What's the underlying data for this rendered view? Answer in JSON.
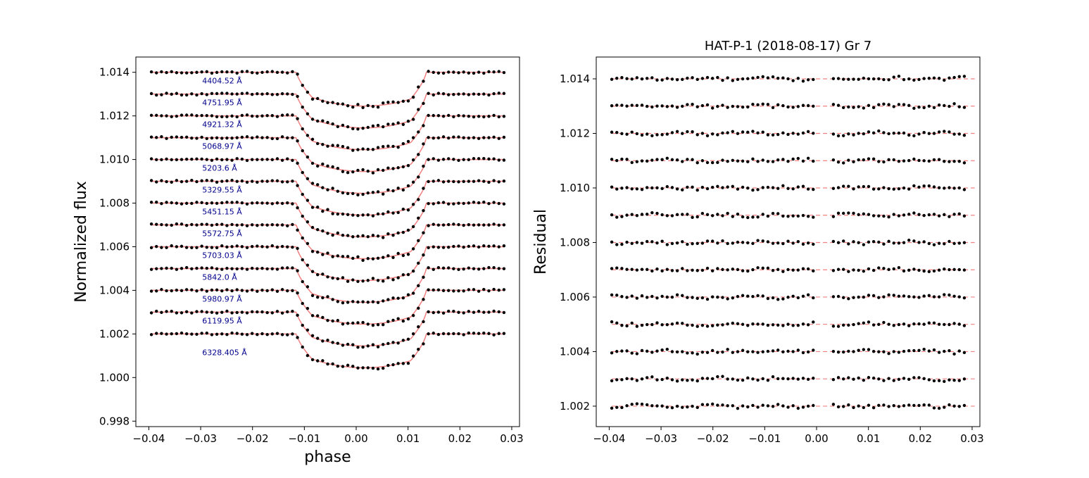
{
  "chart_data": [
    {
      "type": "scatter",
      "title": "",
      "xlabel": "phase",
      "ylabel": "Normalized flux",
      "xlim": [
        -0.0425,
        0.0315
      ],
      "ylim": [
        0.99775,
        1.0147
      ],
      "xticks": [
        -0.04,
        -0.03,
        -0.02,
        -0.01,
        0.0,
        0.01,
        0.02,
        0.03
      ],
      "xtick_labels": [
        "−0.04",
        "−0.03",
        "−0.02",
        "−0.01",
        "0.00",
        "0.01",
        "0.02",
        "0.03"
      ],
      "yticks": [
        0.998,
        1.0,
        1.002,
        1.004,
        1.006,
        1.008,
        1.01,
        1.012,
        1.014
      ],
      "ytick_labels": [
        "0.998",
        "1.000",
        "1.002",
        "1.004",
        "1.006",
        "1.008",
        "1.010",
        "1.012",
        "1.014"
      ],
      "model_color": "#f08080",
      "point_color": "#000000",
      "label_color": "#00008b",
      "transit": {
        "t1": -0.0115,
        "t2": -0.0085,
        "t3": 0.0105,
        "t4": 0.0135,
        "ingress_curve": 0.7,
        "bottom_depth": 0.00155,
        "bottom_curvature": 0.00048,
        "phase_start": -0.0395,
        "phase_end": 0.0285,
        "n_points": 71
      },
      "series": [
        {
          "name": "4404.52 Å",
          "baseline": 1.014
        },
        {
          "name": "4751.95 Å",
          "baseline": 1.013
        },
        {
          "name": "4921.32 Å",
          "baseline": 1.012
        },
        {
          "name": "5068.97 Å",
          "baseline": 1.011
        },
        {
          "name": "5203.6 Å",
          "baseline": 1.01
        },
        {
          "name": "5329.55 Å",
          "baseline": 1.009
        },
        {
          "name": "5451.15 Å",
          "baseline": 1.008
        },
        {
          "name": "5572.75 Å",
          "baseline": 1.007
        },
        {
          "name": "5703.03 Å",
          "baseline": 1.006
        },
        {
          "name": "5842.0 Å",
          "baseline": 1.005
        },
        {
          "name": "5980.97 Å",
          "baseline": 1.004
        },
        {
          "name": "6119.95 Å",
          "baseline": 1.003
        },
        {
          "name": "6328.405 Å",
          "baseline": 1.002
        }
      ]
    },
    {
      "type": "scatter",
      "title": "HAT-P-1 (2018-08-17) Gr 7",
      "xlabel": "",
      "ylabel": "Residual",
      "xlim": [
        -0.0425,
        0.0315
      ],
      "ylim": [
        1.00125,
        1.0148
      ],
      "xticks": [
        -0.04,
        -0.03,
        -0.02,
        -0.01,
        0.0,
        0.01,
        0.02,
        0.03
      ],
      "xtick_labels": [
        "−0.04",
        "−0.03",
        "−0.02",
        "−0.01",
        "0.00",
        "0.01",
        "0.02",
        "0.03"
      ],
      "yticks": [
        1.002,
        1.004,
        1.006,
        1.008,
        1.01,
        1.012,
        1.014
      ],
      "ytick_labels": [
        "1.002",
        "1.004",
        "1.006",
        "1.008",
        "1.010",
        "1.012",
        "1.014"
      ],
      "reference_lines": [
        1.014,
        1.013,
        1.012,
        1.011,
        1.01,
        1.009,
        1.008,
        1.007,
        1.006,
        1.005,
        1.004,
        1.003,
        1.002
      ],
      "gap": [
        0.0,
        0.0025
      ],
      "noise_amplitude": 8e-05,
      "line_color": "#f08080",
      "point_color": "#000000"
    }
  ]
}
